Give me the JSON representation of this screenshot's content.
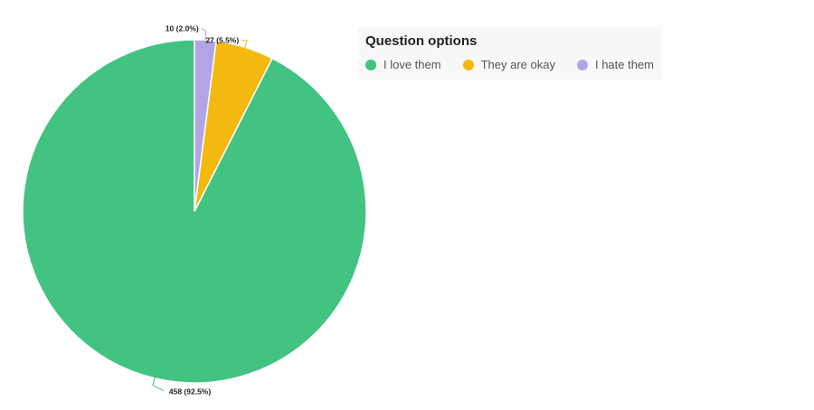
{
  "chart_data": {
    "type": "pie",
    "title": "",
    "legend_title": "Question options",
    "legend_position": "top-right",
    "categories": [
      "I love them",
      "They are okay",
      "I hate them"
    ],
    "values": [
      458,
      27,
      10
    ],
    "data_labels": [
      "458 (92.5%)",
      "27 (5.5%)",
      "10 (2.0%)"
    ],
    "colors": [
      "#42c381",
      "#f4b90f",
      "#b2a5e6"
    ]
  }
}
